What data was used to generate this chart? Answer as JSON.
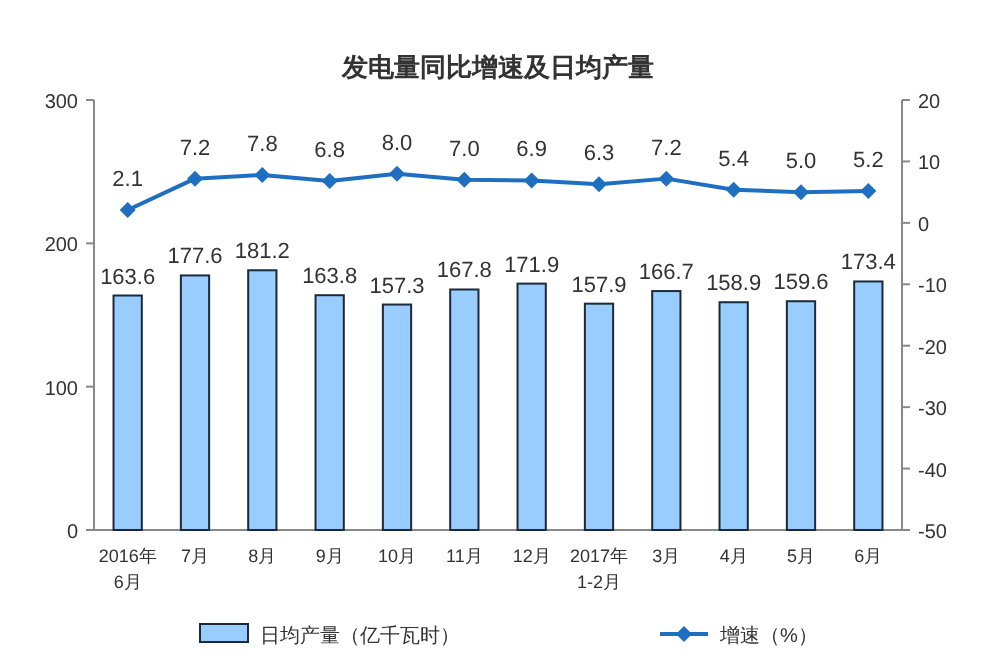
{
  "chart_data": {
    "type": "bar",
    "title": "发电量同比增速及日均产量",
    "categories": [
      "2016年\n6月",
      "7月",
      "8月",
      "9月",
      "10月",
      "11月",
      "12月",
      "2017年\n1-2月",
      "3月",
      "4月",
      "5月",
      "6月"
    ],
    "series": [
      {
        "name": "日均产量（亿千瓦时）",
        "color": "#99ccff",
        "values": [
          163.6,
          177.6,
          181.2,
          163.8,
          157.3,
          167.8,
          171.9,
          157.9,
          166.7,
          158.9,
          159.6,
          173.4
        ]
      },
      {
        "name": "增速（%）",
        "type": "line",
        "axis": "y2",
        "color": "#1f6fc0",
        "marker": "diamond",
        "values": [
          2.1,
          7.2,
          7.8,
          6.8,
          8.0,
          7.0,
          6.9,
          6.3,
          7.2,
          5.4,
          5.0,
          5.2
        ],
        "value_labels": [
          "2.1",
          "7.2",
          "7.8",
          "6.8",
          "8.0",
          "7.0",
          "6.9",
          "6.3",
          "7.2",
          "5.4",
          "5.0",
          "5.2"
        ]
      }
    ],
    "ylim": [
      0,
      300
    ],
    "yticks": [
      0,
      100,
      200,
      300
    ],
    "y2lim": [
      -50,
      20
    ],
    "y2ticks": [
      -50,
      -40,
      -30,
      -20,
      -10,
      0,
      10,
      20
    ],
    "data_labels": true,
    "legend": "bottom",
    "grid": false
  }
}
